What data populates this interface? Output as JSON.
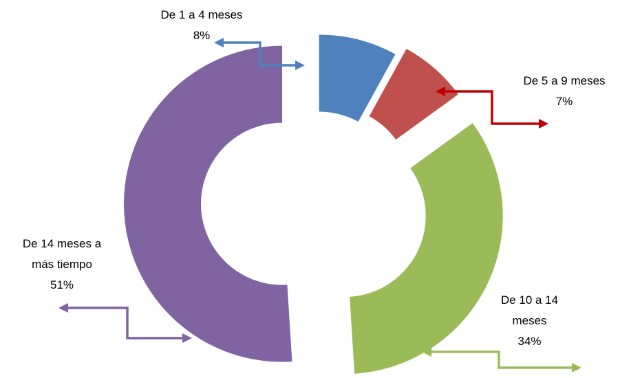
{
  "chart_data": {
    "type": "donut",
    "categories": [
      "De 1 a 4 meses",
      "De 5 a 9 meses",
      "De 10 a 14 meses",
      "De 14 meses a más tiempo"
    ],
    "values": [
      8,
      7,
      34,
      51
    ],
    "value_labels": [
      "8%",
      "7%",
      "34%",
      "51%"
    ],
    "colors": [
      "#4f81bd",
      "#c0504d",
      "#9bbb59",
      "#8064a2"
    ]
  }
}
